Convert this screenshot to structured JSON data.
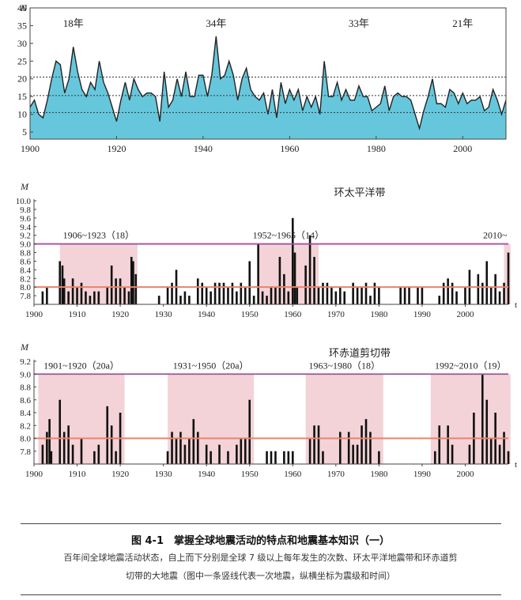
{
  "chart_data": [
    {
      "type": "area",
      "ylabel": "N",
      "xlim": [
        1900,
        2010
      ],
      "ylim": [
        3,
        40
      ],
      "yticks": [
        5,
        10,
        15,
        20,
        25,
        30,
        35,
        40
      ],
      "xticks": [
        1900,
        1920,
        1940,
        1960,
        1980,
        2000
      ],
      "ref_lines": [
        10.5,
        15.3,
        20.5
      ],
      "period_labels": [
        {
          "text": "18年",
          "x": 1910
        },
        {
          "text": "34年",
          "x": 1943
        },
        {
          "text": "33年",
          "x": 1976
        },
        {
          "text": "21年",
          "x": 2000
        }
      ],
      "colors": {
        "fill": "#66c7dc",
        "line": "#222222"
      },
      "series": [
        {
          "x": [
            1900,
            1901,
            1902,
            1903,
            1904,
            1905,
            1906,
            1907,
            1908,
            1909,
            1910,
            1911,
            1912,
            1913,
            1914,
            1915,
            1916,
            1917,
            1918,
            1919,
            1920,
            1921,
            1922,
            1923,
            1924,
            1925,
            1926,
            1927,
            1928,
            1929,
            1930,
            1931,
            1932,
            1933,
            1934,
            1935,
            1936,
            1937,
            1938,
            1939,
            1940,
            1941,
            1942,
            1943,
            1944,
            1945,
            1946,
            1947,
            1948,
            1949,
            1950,
            1951,
            1952,
            1953,
            1954,
            1955,
            1956,
            1957,
            1958,
            1959,
            1960,
            1961,
            1962,
            1963,
            1964,
            1965,
            1966,
            1967,
            1968,
            1969,
            1970,
            1971,
            1972,
            1973,
            1974,
            1975,
            1976,
            1977,
            1978,
            1979,
            1980,
            1981,
            1982,
            1983,
            1984,
            1985,
            1986,
            1987,
            1988,
            1989,
            1990,
            1991,
            1992,
            1993,
            1994,
            1995,
            1996,
            1997,
            1998,
            1999,
            2000,
            2001,
            2002,
            2003,
            2004,
            2005,
            2006,
            2007,
            2008,
            2009,
            2010
          ],
          "values": [
            12,
            14,
            10,
            9,
            14,
            20,
            25,
            24,
            16,
            20,
            29,
            22,
            17,
            15,
            19,
            17,
            25,
            19,
            16,
            12,
            8,
            14,
            19,
            14,
            20,
            17,
            15,
            16,
            16,
            15,
            8,
            22,
            12,
            14,
            20,
            15,
            22,
            15,
            15,
            21,
            21,
            15,
            21,
            32,
            20,
            21,
            25,
            21,
            14,
            20,
            23,
            17,
            15,
            14,
            16,
            10,
            17,
            9,
            19,
            13,
            17,
            14,
            17,
            11,
            15,
            12,
            15,
            10,
            25,
            15,
            15,
            19,
            14,
            17,
            14,
            14,
            18,
            15,
            15,
            11,
            12,
            13,
            18,
            11,
            15,
            16,
            15,
            15,
            14,
            10,
            6,
            11,
            15,
            20,
            13,
            13,
            12,
            17,
            16,
            13,
            16,
            13,
            14,
            14,
            15,
            11,
            12,
            17,
            14,
            10,
            14
          ]
        }
      ]
    },
    {
      "type": "bar",
      "title": "环太平洋带",
      "ylabel": "M",
      "xlim": [
        1900,
        2010
      ],
      "ylim": [
        7.6,
        10.0
      ],
      "yticks": [
        7.8,
        8.0,
        8.2,
        8.4,
        8.6,
        8.8,
        9.0,
        9.2,
        9.4,
        9.6,
        9.8,
        10.0
      ],
      "xticks": [
        1900,
        1910,
        1920,
        1930,
        1940,
        1950,
        1960,
        1970,
        1980,
        1990,
        2000
      ],
      "ref_lines": [
        8.0,
        9.0
      ],
      "periods": [
        {
          "label": "1906~1923（18）",
          "start": 1906,
          "end": 1924
        },
        {
          "label": "1952~1965（14）",
          "start": 1952,
          "end": 1966
        },
        {
          "label": "2010~",
          "start": 2009,
          "end": 2010.5
        }
      ],
      "colors": {
        "shade": "#f3d3d8",
        "line_low": "#e8836a",
        "line_high": "#a0529b",
        "bar": "#111111"
      },
      "events": [
        {
          "x": 1902,
          "m": 7.9
        },
        {
          "x": 1903,
          "m": 8.0
        },
        {
          "x": 1906,
          "m": 8.6
        },
        {
          "x": 1906.6,
          "m": 8.5
        },
        {
          "x": 1907,
          "m": 8.2
        },
        {
          "x": 1908,
          "m": 7.9
        },
        {
          "x": 1909,
          "m": 8.2
        },
        {
          "x": 1910,
          "m": 8.0
        },
        {
          "x": 1911,
          "m": 8.1
        },
        {
          "x": 1912,
          "m": 7.9
        },
        {
          "x": 1913,
          "m": 7.8
        },
        {
          "x": 1914,
          "m": 7.9
        },
        {
          "x": 1915,
          "m": 7.9
        },
        {
          "x": 1917,
          "m": 8.0
        },
        {
          "x": 1918,
          "m": 8.5
        },
        {
          "x": 1919,
          "m": 8.2
        },
        {
          "x": 1920,
          "m": 8.2
        },
        {
          "x": 1921,
          "m": 8.0
        },
        {
          "x": 1922,
          "m": 7.9
        },
        {
          "x": 1922.6,
          "m": 8.7
        },
        {
          "x": 1923,
          "m": 8.6
        },
        {
          "x": 1923.6,
          "m": 8.3
        },
        {
          "x": 1929,
          "m": 7.8
        },
        {
          "x": 1931,
          "m": 8.0
        },
        {
          "x": 1932,
          "m": 8.1
        },
        {
          "x": 1933,
          "m": 8.4
        },
        {
          "x": 1934,
          "m": 7.8
        },
        {
          "x": 1935,
          "m": 7.9
        },
        {
          "x": 1936,
          "m": 7.8
        },
        {
          "x": 1938,
          "m": 8.2
        },
        {
          "x": 1939,
          "m": 8.1
        },
        {
          "x": 1940,
          "m": 8.0
        },
        {
          "x": 1941,
          "m": 7.9
        },
        {
          "x": 1942,
          "m": 8.1
        },
        {
          "x": 1943,
          "m": 8.1
        },
        {
          "x": 1944,
          "m": 8.1
        },
        {
          "x": 1945,
          "m": 8.0
        },
        {
          "x": 1946,
          "m": 8.1
        },
        {
          "x": 1947,
          "m": 7.9
        },
        {
          "x": 1948,
          "m": 8.1
        },
        {
          "x": 1949,
          "m": 8.0
        },
        {
          "x": 1950,
          "m": 8.6
        },
        {
          "x": 1951,
          "m": 7.8
        },
        {
          "x": 1952,
          "m": 9.0
        },
        {
          "x": 1953,
          "m": 7.9
        },
        {
          "x": 1954,
          "m": 7.8
        },
        {
          "x": 1955,
          "m": 8.0
        },
        {
          "x": 1956,
          "m": 8.0
        },
        {
          "x": 1957,
          "m": 8.7
        },
        {
          "x": 1958,
          "m": 8.3
        },
        {
          "x": 1959,
          "m": 7.9
        },
        {
          "x": 1960,
          "m": 9.6
        },
        {
          "x": 1960.5,
          "m": 8.8
        },
        {
          "x": 1961,
          "m": 8.0
        },
        {
          "x": 1963,
          "m": 8.5
        },
        {
          "x": 1964,
          "m": 9.2
        },
        {
          "x": 1965,
          "m": 8.7
        },
        {
          "x": 1966,
          "m": 8.0
        },
        {
          "x": 1967,
          "m": 8.1
        },
        {
          "x": 1968,
          "m": 8.1
        },
        {
          "x": 1969,
          "m": 8.0
        },
        {
          "x": 1970,
          "m": 7.9
        },
        {
          "x": 1971,
          "m": 8.0
        },
        {
          "x": 1972,
          "m": 7.9
        },
        {
          "x": 1974,
          "m": 8.1
        },
        {
          "x": 1975,
          "m": 8.0
        },
        {
          "x": 1976,
          "m": 8.0
        },
        {
          "x": 1977,
          "m": 8.1
        },
        {
          "x": 1978,
          "m": 7.8
        },
        {
          "x": 1979,
          "m": 8.1
        },
        {
          "x": 1980,
          "m": 8.0
        },
        {
          "x": 1985,
          "m": 8.0
        },
        {
          "x": 1986,
          "m": 8.0
        },
        {
          "x": 1987,
          "m": 8.0
        },
        {
          "x": 1989,
          "m": 8.0
        },
        {
          "x": 1990,
          "m": 8.0
        },
        {
          "x": 1994,
          "m": 7.8
        },
        {
          "x": 1995,
          "m": 8.1
        },
        {
          "x": 1996,
          "m": 8.2
        },
        {
          "x": 1997,
          "m": 8.1
        },
        {
          "x": 1998,
          "m": 7.9
        },
        {
          "x": 2000,
          "m": 8.0
        },
        {
          "x": 2001,
          "m": 8.4
        },
        {
          "x": 2003,
          "m": 8.3
        },
        {
          "x": 2004,
          "m": 8.1
        },
        {
          "x": 2005,
          "m": 8.6
        },
        {
          "x": 2006,
          "m": 8.0
        },
        {
          "x": 2007,
          "m": 8.3
        },
        {
          "x": 2008,
          "m": 7.9
        },
        {
          "x": 2009,
          "m": 8.1
        },
        {
          "x": 2010,
          "m": 8.8
        }
      ]
    },
    {
      "type": "bar",
      "title": "环赤道剪切带",
      "ylabel": "M",
      "xlim": [
        1900,
        2010
      ],
      "ylim": [
        7.6,
        9.2
      ],
      "yticks": [
        7.8,
        8.0,
        8.2,
        8.4,
        8.6,
        8.8,
        9.0,
        9.2
      ],
      "xticks": [
        1900,
        1910,
        1920,
        1930,
        1940,
        1950,
        1960,
        1970,
        1980,
        1990,
        2000
      ],
      "ref_lines": [
        8.0,
        9.0
      ],
      "periods": [
        {
          "label": "1901~1920（20a）",
          "start": 1901,
          "end": 1921
        },
        {
          "label": "1931~1950（20a）",
          "start": 1931,
          "end": 1951
        },
        {
          "label": "1963~1980（18）",
          "start": 1963,
          "end": 1981
        },
        {
          "label": "1992~2010（19）",
          "start": 1992,
          "end": 2010.5
        }
      ],
      "colors": {
        "shade": "#f3d3d8",
        "line_low": "#e8836a",
        "line_high": "#a0529b",
        "bar": "#111111"
      },
      "events": [
        {
          "x": 1902,
          "m": 7.9
        },
        {
          "x": 1903,
          "m": 8.1
        },
        {
          "x": 1903.6,
          "m": 8.3
        },
        {
          "x": 1904,
          "m": 7.8
        },
        {
          "x": 1906,
          "m": 8.6
        },
        {
          "x": 1907,
          "m": 8.1
        },
        {
          "x": 1908,
          "m": 8.2
        },
        {
          "x": 1909,
          "m": 7.9
        },
        {
          "x": 1911,
          "m": 8.0
        },
        {
          "x": 1914,
          "m": 7.8
        },
        {
          "x": 1915,
          "m": 7.9
        },
        {
          "x": 1917,
          "m": 8.5
        },
        {
          "x": 1918,
          "m": 8.2
        },
        {
          "x": 1919,
          "m": 7.8
        },
        {
          "x": 1920,
          "m": 8.4
        },
        {
          "x": 1931,
          "m": 7.8
        },
        {
          "x": 1932,
          "m": 8.1
        },
        {
          "x": 1933,
          "m": 8.0
        },
        {
          "x": 1934,
          "m": 8.1
        },
        {
          "x": 1935,
          "m": 7.9
        },
        {
          "x": 1936,
          "m": 8.0
        },
        {
          "x": 1937,
          "m": 8.3
        },
        {
          "x": 1938,
          "m": 8.1
        },
        {
          "x": 1940,
          "m": 7.9
        },
        {
          "x": 1941,
          "m": 7.8
        },
        {
          "x": 1943,
          "m": 7.9
        },
        {
          "x": 1945,
          "m": 7.8
        },
        {
          "x": 1947,
          "m": 7.9
        },
        {
          "x": 1948,
          "m": 8.0
        },
        {
          "x": 1949,
          "m": 8.0
        },
        {
          "x": 1950,
          "m": 8.6
        },
        {
          "x": 1954,
          "m": 7.8
        },
        {
          "x": 1955,
          "m": 7.8
        },
        {
          "x": 1956,
          "m": 7.8
        },
        {
          "x": 1958,
          "m": 7.8
        },
        {
          "x": 1959,
          "m": 7.8
        },
        {
          "x": 1960,
          "m": 7.8
        },
        {
          "x": 1964,
          "m": 8.0
        },
        {
          "x": 1965,
          "m": 8.2
        },
        {
          "x": 1966,
          "m": 8.2
        },
        {
          "x": 1967,
          "m": 7.8
        },
        {
          "x": 1971,
          "m": 8.1
        },
        {
          "x": 1973,
          "m": 8.1
        },
        {
          "x": 1974,
          "m": 7.9
        },
        {
          "x": 1975,
          "m": 7.9
        },
        {
          "x": 1976,
          "m": 8.2
        },
        {
          "x": 1977,
          "m": 8.3
        },
        {
          "x": 1978,
          "m": 8.1
        },
        {
          "x": 1980,
          "m": 7.8
        },
        {
          "x": 1993,
          "m": 7.8
        },
        {
          "x": 1994,
          "m": 8.2
        },
        {
          "x": 1996,
          "m": 8.2
        },
        {
          "x": 1997,
          "m": 7.9
        },
        {
          "x": 2001,
          "m": 7.9
        },
        {
          "x": 2002,
          "m": 8.4
        },
        {
          "x": 2004,
          "m": 9.0
        },
        {
          "x": 2005,
          "m": 8.6
        },
        {
          "x": 2006,
          "m": 8.0
        },
        {
          "x": 2007,
          "m": 8.4
        },
        {
          "x": 2008,
          "m": 7.9
        },
        {
          "x": 2009,
          "m": 8.1
        },
        {
          "x": 2010,
          "m": 7.8
        }
      ]
    }
  ],
  "xaxis_t": "t",
  "caption": {
    "title": "图 4-1　掌握全球地震活动的特点和地震基本知识（一）",
    "line1": "百年间全球地震活动状态，自上而下分别是全球 7 级以上每年发生的次数、环太平洋地震带和环赤道剪",
    "line2": "切带的大地震（图中一条竖线代表一次地震，纵横坐标为震级和时间）"
  }
}
